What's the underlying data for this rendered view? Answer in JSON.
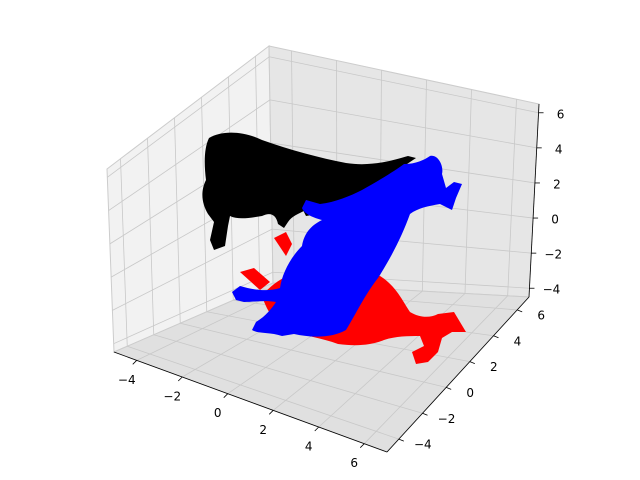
{
  "chart_data": {
    "type": "scatter",
    "projection": "3d",
    "title": "",
    "xlabel": "",
    "ylabel": "",
    "zlabel": "",
    "grid": true,
    "legend": "none",
    "xlim": [
      -5,
      7
    ],
    "ylim": [
      -5,
      7
    ],
    "zlim": [
      -4.5,
      6.5
    ],
    "x_ticks": [
      "−4",
      "−2",
      "0",
      "2",
      "4",
      "6"
    ],
    "y_ticks": [
      "−4",
      "−2",
      "0",
      "2",
      "4",
      "6"
    ],
    "z_ticks": [
      "−4",
      "−2",
      "0",
      "2",
      "4",
      "6"
    ],
    "series": [
      {
        "color": "#000000",
        "description": "cow silhouette in the plane y = 6, standing upright"
      },
      {
        "color": "#ff0000",
        "description": "cow silhouette in the floor plane z = -4.5, lying flat"
      },
      {
        "color": "#0000ff",
        "description": "cow silhouette in a tilted plane through the middle of the box"
      }
    ]
  }
}
